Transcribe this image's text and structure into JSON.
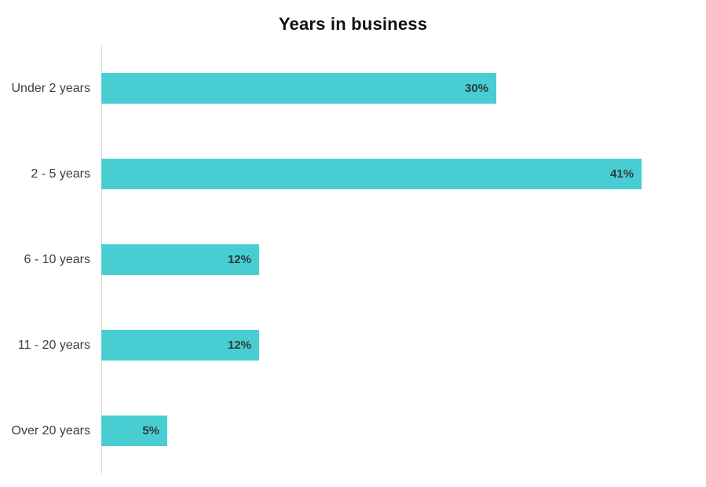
{
  "chart_data": {
    "type": "bar",
    "orientation": "horizontal",
    "title": "Years in business",
    "categories": [
      "Under 2 years",
      "2 - 5 years",
      "6 - 10 years",
      "11 - 20 years",
      "Over 20 years"
    ],
    "values": [
      30,
      41,
      12,
      12,
      5
    ],
    "value_labels": [
      "30%",
      "41%",
      "12%",
      "12%",
      "5%"
    ],
    "xlim": [
      0,
      45.8
    ],
    "grid": false,
    "legend": "none",
    "colors": {
      "bar": "#48CED2",
      "title_text": "#111111",
      "category_text": "#3d3d3d",
      "value_text": "#2f3b3e",
      "axis_line": "#d8d8d8",
      "background": "#ffffff"
    }
  }
}
